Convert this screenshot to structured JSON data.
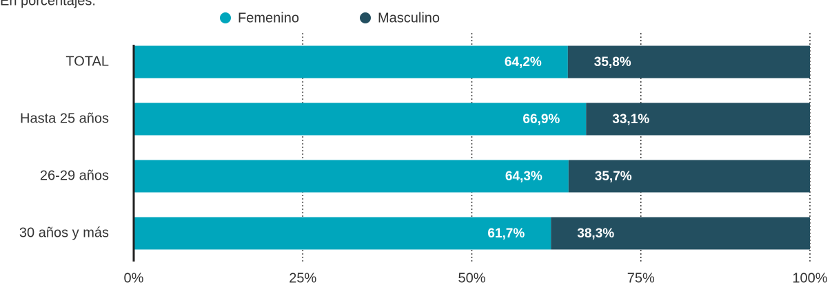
{
  "chart_data": {
    "type": "stacked_barh",
    "subtitle": "En porcentajes.",
    "categories": [
      "TOTAL",
      "Hasta 25 años",
      "26-29 años",
      "30 años y más"
    ],
    "series": [
      {
        "name": "Femenino",
        "color": "#00a6bc",
        "values": [
          64.2,
          66.9,
          64.3,
          61.7
        ],
        "value_labels": [
          "64,2%",
          "66,9%",
          "64,3%",
          "61,7%"
        ]
      },
      {
        "name": "Masculino",
        "color": "#234f60",
        "values": [
          35.8,
          33.1,
          35.7,
          38.3
        ],
        "value_labels": [
          "35,8%",
          "33,1%",
          "35,7%",
          "38,3%"
        ]
      }
    ],
    "xlim": [
      0,
      100
    ],
    "xticks": [
      {
        "value": 0,
        "label": "0%"
      },
      {
        "value": 25,
        "label": "25%"
      },
      {
        "value": 50,
        "label": "50%"
      },
      {
        "value": 75,
        "label": "75%"
      },
      {
        "value": 100,
        "label": "100%"
      }
    ],
    "grid": true
  }
}
